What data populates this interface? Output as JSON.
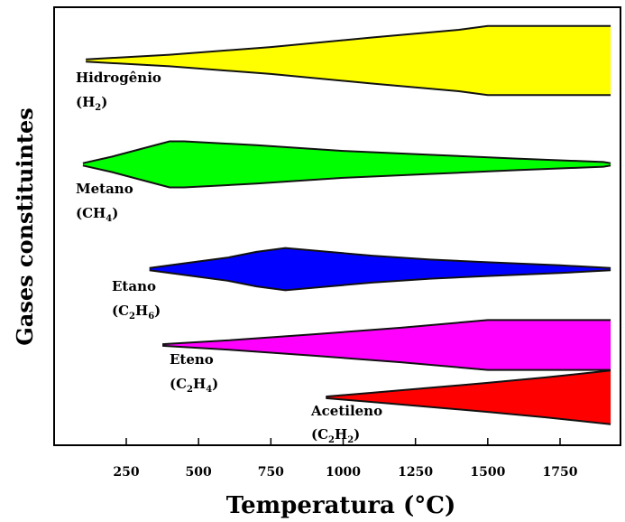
{
  "chart_data": {
    "type": "area",
    "xlabel": "Temperatura (°C)",
    "ylabel": "Gases constituintes",
    "xticks": [
      250,
      500,
      750,
      1000,
      1250,
      1500,
      1750
    ],
    "xlim": [
      0,
      1950
    ],
    "grid": false,
    "series": [
      {
        "name": "Hidrogênio",
        "formula": "(H2)",
        "formula_parts": [
          "(H",
          "2",
          ")"
        ],
        "color": "#ffff00",
        "profile_x": [
          110,
          400,
          750,
          1100,
          1400,
          1500,
          1925
        ],
        "profile_width": [
          0.3,
          1.5,
          3.5,
          6,
          8,
          9,
          9
        ],
        "start": 110,
        "end": 1925
      },
      {
        "name": "Metano",
        "formula": "(CH4)",
        "formula_parts": [
          "(CH",
          "4",
          ")"
        ],
        "color": "#00ff00",
        "profile_x": [
          100,
          200,
          300,
          400,
          450,
          700,
          1000,
          1300,
          1600,
          1900,
          1925
        ],
        "profile_width": [
          0.3,
          2,
          4,
          6,
          6,
          5,
          3.5,
          2.5,
          1.5,
          0.6,
          0.3
        ],
        "start": 100,
        "end": 1925
      },
      {
        "name": "Etano",
        "formula": "(C2H6)",
        "formula_parts": [
          "(C",
          "2",
          "H",
          "6",
          ")"
        ],
        "color": "#0000ff",
        "profile_x": [
          330,
          450,
          600,
          700,
          800,
          950,
          1100,
          1300,
          1500,
          1750,
          1925
        ],
        "profile_width": [
          0.3,
          1.5,
          3,
          4.5,
          5.5,
          4.5,
          3.5,
          2.5,
          1.8,
          1.0,
          0.3
        ],
        "start": 330,
        "end": 1925
      },
      {
        "name": "Eteno",
        "formula": "(C2H4)",
        "formula_parts": [
          "(C",
          "2",
          "H",
          "4",
          ")"
        ],
        "color": "#ff00ff",
        "profile_x": [
          375,
          600,
          900,
          1200,
          1500,
          1925
        ],
        "profile_width": [
          0.2,
          1.2,
          2.8,
          4.5,
          6.5,
          6.5
        ],
        "start": 375,
        "end": 1925
      },
      {
        "name": "Acetileno",
        "formula": "(C2H2)",
        "formula_parts": [
          "(C",
          "2",
          "H",
          "2",
          ")"
        ],
        "color": "#ff0000",
        "profile_x": [
          940,
          1100,
          1300,
          1500,
          1700,
          1925
        ],
        "profile_width": [
          0.2,
          1.2,
          2.5,
          3.8,
          5.2,
          7
        ],
        "start": 940,
        "end": 1925
      }
    ]
  }
}
